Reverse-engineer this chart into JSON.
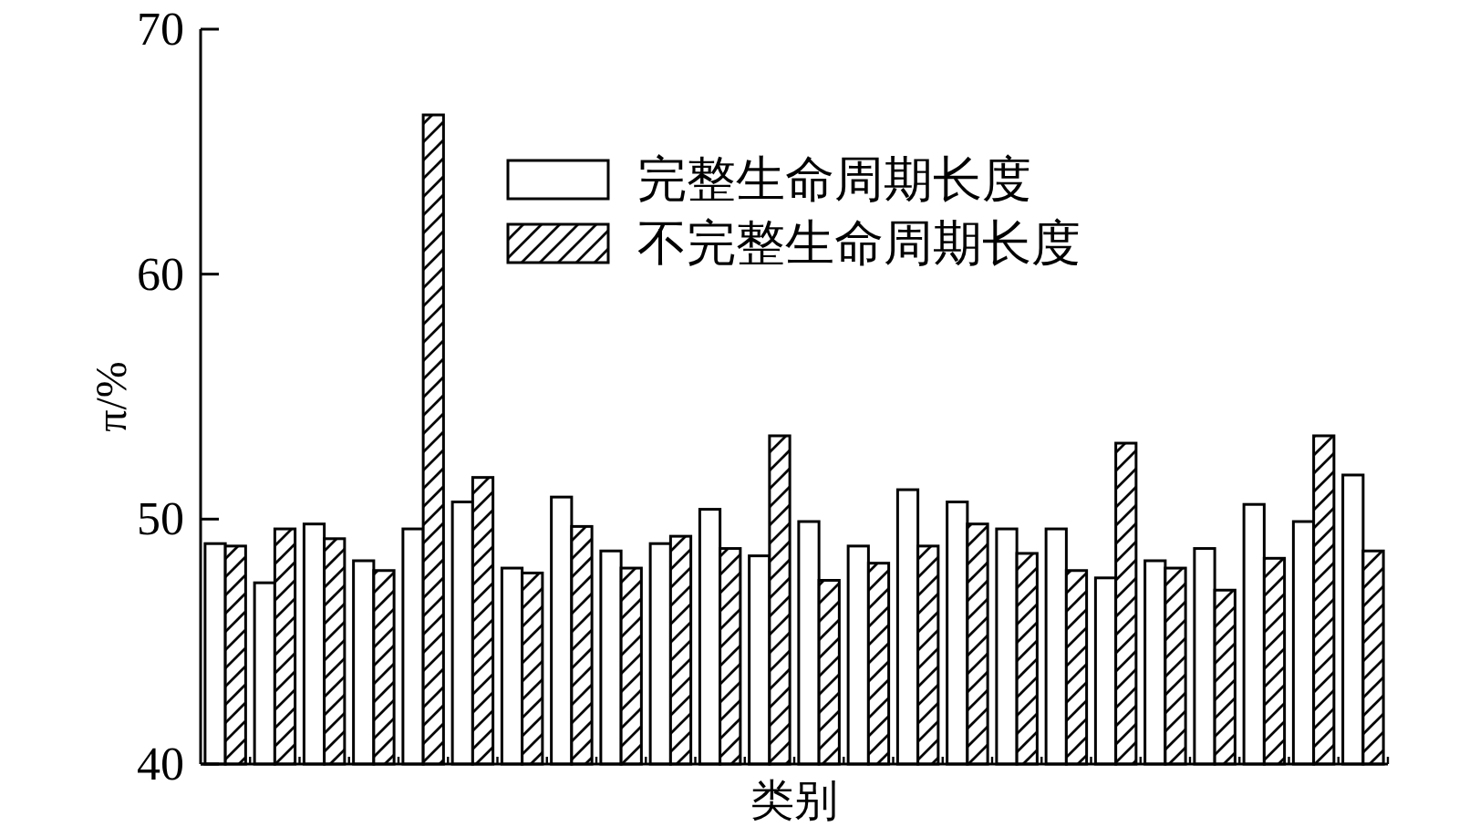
{
  "chart_data": {
    "type": "bar",
    "xlabel": "类别",
    "ylabel": "π/%",
    "legend": "top",
    "categories": [
      null,
      null,
      null,
      null,
      null,
      null,
      null,
      null,
      null,
      null,
      null,
      null,
      null,
      null,
      null,
      null,
      null,
      null,
      null,
      null,
      null,
      null,
      null,
      null
    ],
    "ylim": [
      40,
      70
    ],
    "yticks": [
      40,
      50,
      60,
      70
    ],
    "series": [
      {
        "name": "完整生命周期长度",
        "color": "#ffffff",
        "values": [
          49.0,
          47.4,
          49.8,
          48.3,
          49.6,
          50.7,
          48.0,
          50.9,
          48.7,
          49.0,
          50.4,
          48.5,
          49.9,
          48.9,
          51.2,
          50.7,
          49.6,
          49.6,
          47.6,
          48.3,
          48.8,
          50.6,
          49.9,
          51.8
        ]
      },
      {
        "name": "不完整生命周期长度",
        "color": "#000000",
        "values": [
          48.9,
          49.6,
          49.2,
          47.9,
          66.5,
          51.7,
          47.8,
          49.7,
          48.0,
          49.3,
          48.8,
          53.4,
          47.5,
          48.2,
          48.9,
          49.8,
          48.6,
          47.9,
          53.1,
          48.0,
          47.1,
          48.4,
          53.4,
          48.7
        ]
      }
    ]
  }
}
